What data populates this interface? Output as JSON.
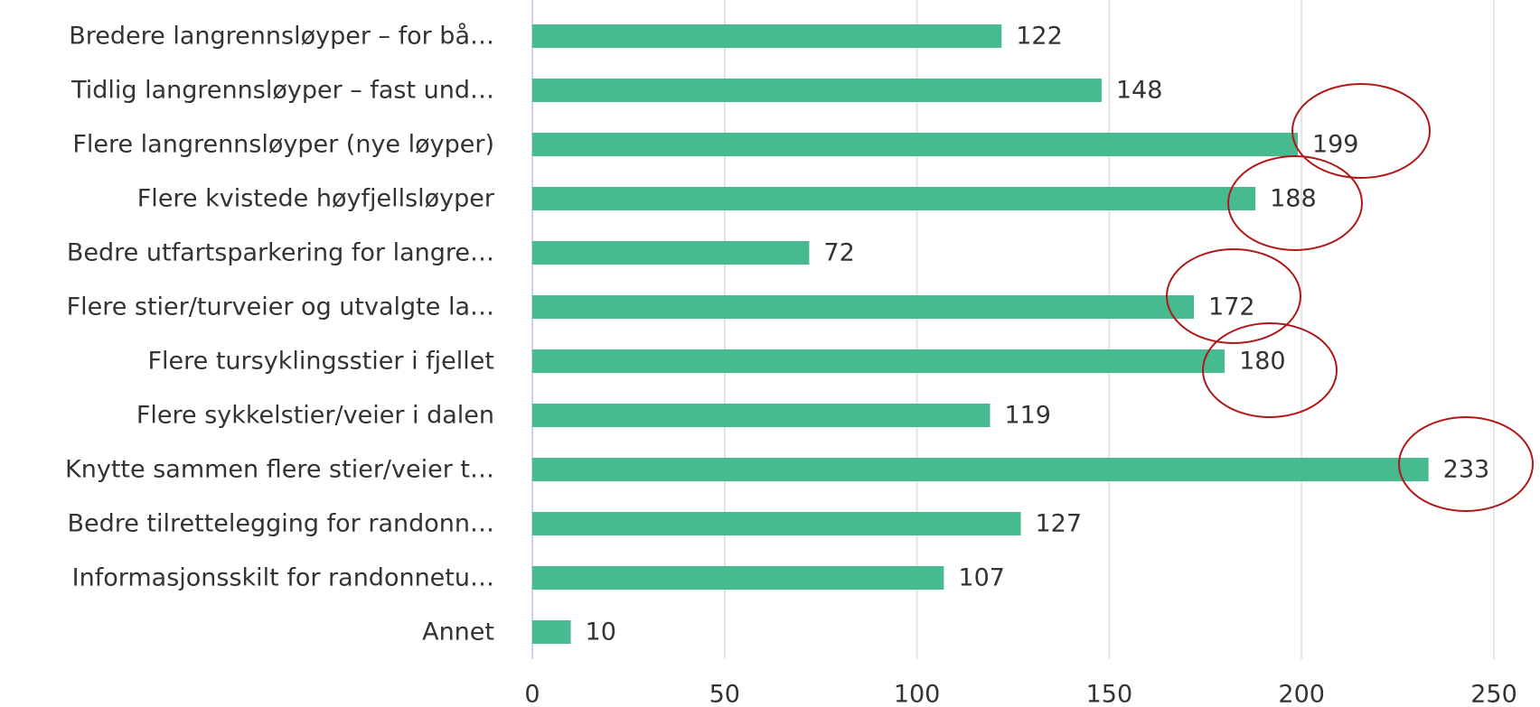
{
  "chart_data": {
    "type": "bar",
    "orientation": "horizontal",
    "categories": [
      "Bredere langrennsløyper – for bå…",
      "Tidlig langrennsløyper – fast und…",
      "Flere langrennsløyper (nye løyper)",
      "Flere kvistede høyfjellsløyper",
      "Bedre utfartsparkering for langre…",
      "Flere stier/turveier og utvalgte la…",
      "Flere tursyklingsstier i fjellet",
      "Flere sykkelstier/veier i dalen",
      "Knytte sammen flere stier/veier t…",
      "Bedre tilrettelegging for randonn…",
      "Informasjonsskilt for randonnetu…",
      "Annet"
    ],
    "values": [
      122,
      148,
      199,
      188,
      72,
      172,
      180,
      119,
      233,
      127,
      107,
      10
    ],
    "color": "#47bb8f",
    "xlim": [
      0,
      250
    ],
    "xticks": [
      0,
      50,
      100,
      150,
      200,
      250
    ],
    "grid": true
  }
}
